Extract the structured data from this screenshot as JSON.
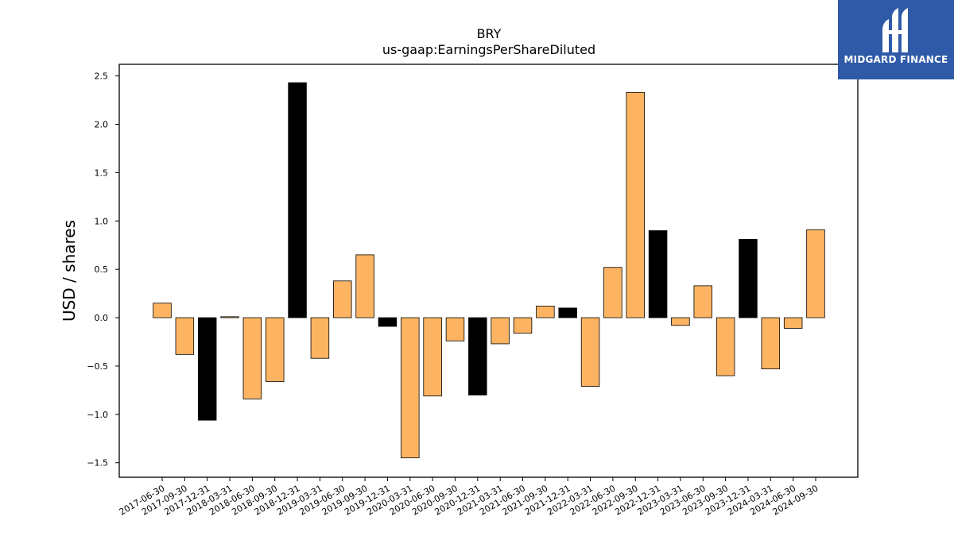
{
  "chart_data": {
    "type": "bar",
    "title": "BRY",
    "subtitle": "us-gaap:EarningsPerShareDiluted",
    "xlabel": "",
    "ylabel": "USD / shares",
    "ylim": [
      -1.65,
      2.62
    ],
    "yticks": [
      -1.5,
      -1.0,
      -0.5,
      0.0,
      0.5,
      1.0,
      1.5,
      2.0,
      2.5
    ],
    "ytick_labels": [
      "−1.5",
      "−1.0",
      "−0.5",
      "0.0",
      "0.5",
      "1.0",
      "1.5",
      "2.0",
      "2.5"
    ],
    "grid": false,
    "colors": {
      "quarter": "#fdb462",
      "annual": "#000000",
      "edge": "#000000"
    },
    "categories": [
      "2017-06-30",
      "2017-09-30",
      "2017-12-31",
      "2018-03-31",
      "2018-06-30",
      "2018-09-30",
      "2018-12-31",
      "2019-03-31",
      "2019-06-30",
      "2019-09-30",
      "2019-12-31",
      "2020-03-31",
      "2020-06-30",
      "2020-09-30",
      "2020-12-31",
      "2021-03-31",
      "2021-06-30",
      "2021-09-30",
      "2021-12-31",
      "2022-03-31",
      "2022-06-30",
      "2022-09-30",
      "2022-12-31",
      "2023-03-31",
      "2023-06-30",
      "2023-09-30",
      "2023-12-31",
      "2024-03-31",
      "2024-06-30",
      "2024-09-30"
    ],
    "values": [
      0.15,
      -0.38,
      -1.06,
      0.01,
      -0.84,
      -0.66,
      2.43,
      -0.42,
      0.38,
      0.65,
      -0.09,
      -1.45,
      -0.81,
      -0.24,
      -0.8,
      -0.27,
      -0.16,
      0.12,
      0.1,
      -0.71,
      0.52,
      2.33,
      0.9,
      -0.08,
      0.33,
      -0.6,
      0.81,
      -0.53,
      -0.11,
      0.91
    ],
    "bar_color_keys": [
      "quarter",
      "quarter",
      "annual",
      "quarter",
      "quarter",
      "quarter",
      "annual",
      "quarter",
      "quarter",
      "quarter",
      "annual",
      "quarter",
      "quarter",
      "quarter",
      "annual",
      "quarter",
      "quarter",
      "quarter",
      "annual",
      "quarter",
      "quarter",
      "quarter",
      "annual",
      "quarter",
      "quarter",
      "quarter",
      "annual",
      "quarter",
      "quarter",
      "quarter"
    ]
  },
  "logo": {
    "text": "MIDGARD FINANCE",
    "icon": "midgard-logo-icon"
  }
}
